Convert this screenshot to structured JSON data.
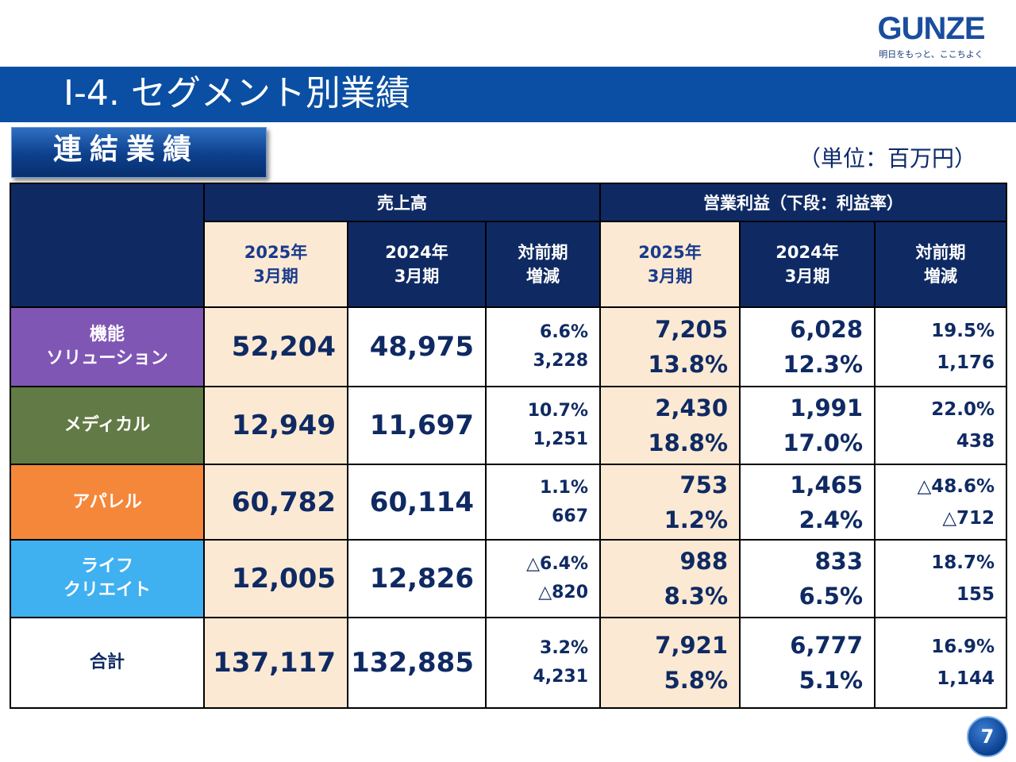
{
  "logo": {
    "word": "GUNZE",
    "tagline": "明日をもっと、ここちよく"
  },
  "title": "Ⅰ-4. セグメント別業績",
  "badge": "連結業績",
  "unit": "（単位：百万円）",
  "page_number": "7",
  "table": {
    "group_headers": {
      "sales": "売上高",
      "operating": "営業利益（下段：利益率）"
    },
    "columns": {
      "fy2025": [
        "2025年",
        "3月期"
      ],
      "fy2024": [
        "2024年",
        "3月期"
      ],
      "change": [
        "対前期",
        "増減"
      ]
    },
    "rows": [
      {
        "name": [
          "機能",
          "ソリューション"
        ],
        "sales_2025": "52,204",
        "sales_2024": "48,975",
        "sales_chg_pct": "6.6%",
        "sales_chg_amt": "3,228",
        "op_2025": "7,205",
        "op_2025_margin": "13.8%",
        "op_2024": "6,028",
        "op_2024_margin": "12.3%",
        "op_chg_pct": "19.5%",
        "op_chg_amt": "1,176"
      },
      {
        "name": [
          "メディカル"
        ],
        "sales_2025": "12,949",
        "sales_2024": "11,697",
        "sales_chg_pct": "10.7%",
        "sales_chg_amt": "1,251",
        "op_2025": "2,430",
        "op_2025_margin": "18.8%",
        "op_2024": "1,991",
        "op_2024_margin": "17.0%",
        "op_chg_pct": "22.0%",
        "op_chg_amt": "438"
      },
      {
        "name": [
          "アパレル"
        ],
        "sales_2025": "60,782",
        "sales_2024": "60,114",
        "sales_chg_pct": "1.1%",
        "sales_chg_amt": "667",
        "op_2025": "753",
        "op_2025_margin": "1.2%",
        "op_2024": "1,465",
        "op_2024_margin": "2.4%",
        "op_chg_pct": "△48.6%",
        "op_chg_amt": "△712"
      },
      {
        "name": [
          "ライフ",
          "クリエイト"
        ],
        "sales_2025": "12,005",
        "sales_2024": "12,826",
        "sales_chg_pct": "△6.4%",
        "sales_chg_amt": "△820",
        "op_2025": "988",
        "op_2025_margin": "8.3%",
        "op_2024": "833",
        "op_2024_margin": "6.5%",
        "op_chg_pct": "18.7%",
        "op_chg_amt": "155"
      },
      {
        "name": [
          "合計"
        ],
        "sales_2025": "137,117",
        "sales_2024": "132,885",
        "sales_chg_pct": "3.2%",
        "sales_chg_amt": "4,231",
        "op_2025": "7,921",
        "op_2025_margin": "5.8%",
        "op_2024": "6,777",
        "op_2024_margin": "5.1%",
        "op_chg_pct": "16.9%",
        "op_chg_amt": "1,144"
      }
    ]
  }
}
